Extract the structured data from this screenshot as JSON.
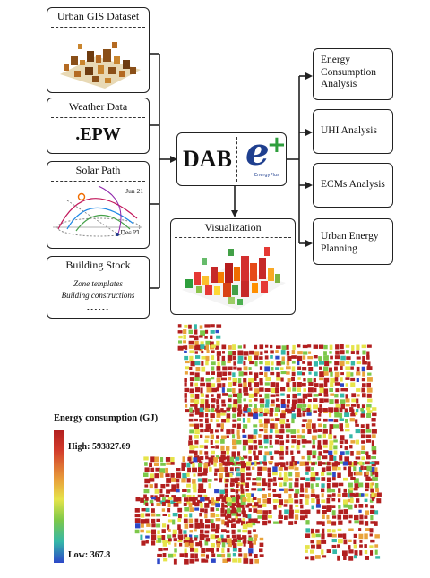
{
  "inputs": {
    "urban_gis": {
      "title": "Urban GIS Dataset"
    },
    "weather": {
      "title": "Weather Data",
      "format": ".EPW"
    },
    "solar": {
      "title": "Solar Path",
      "label_jun": "Jun 21",
      "label_dec": "Dec 21"
    },
    "building_stock": {
      "title": "Building Stock",
      "item_1": "Zone templates",
      "item_2": "Building constructions",
      "more": "......"
    }
  },
  "engine": {
    "label": "DAB",
    "logo_letter": "e",
    "logo_plus": "+",
    "logo_caption": "EnergyPlus"
  },
  "visualization": {
    "title": "Visualization"
  },
  "outputs": {
    "energy": {
      "line1": "Energy",
      "line2": "Consumption",
      "line3": "Analysis"
    },
    "uhi": {
      "label": "UHI Analysis"
    },
    "ecms": {
      "label": "ECMs Analysis"
    },
    "planning": {
      "line1": "Urban Energy",
      "line2": "Planning"
    }
  },
  "map_legend": {
    "title": "Energy consumption (GJ)",
    "high": "High: 593827.69",
    "low": "Low: 367.8",
    "high_value": 593827.69,
    "low_value": 367.8,
    "colors": [
      "#b21f1f",
      "#e9a33b",
      "#e6e44a",
      "#7cc84a",
      "#35b8a8",
      "#2d48c8"
    ]
  }
}
